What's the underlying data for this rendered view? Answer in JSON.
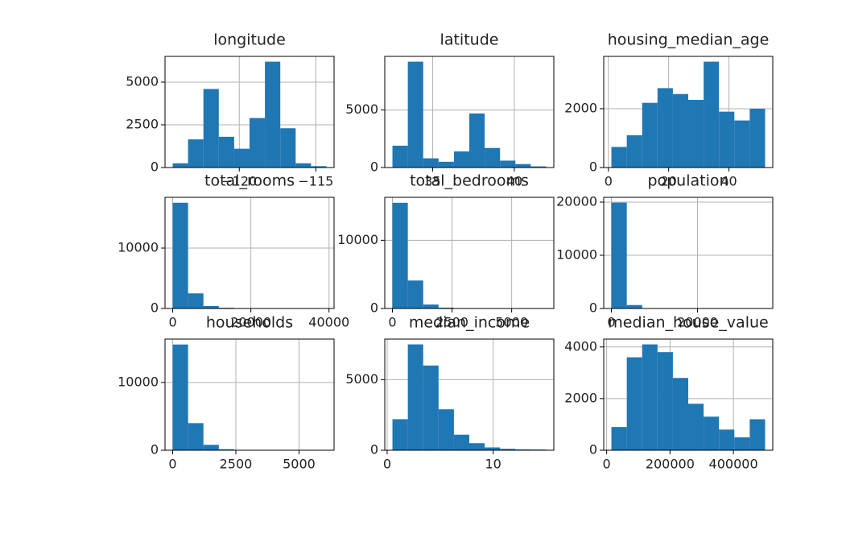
{
  "chart_data": [
    {
      "type": "histogram",
      "title": "longitude",
      "color": "#1f77b4",
      "grid": true,
      "bins": [
        -124.35,
        -123.346,
        -122.342,
        -121.338,
        -120.334,
        -119.33,
        -118.326,
        -117.322,
        -116.318,
        -115.314,
        -114.31
      ],
      "counts": [
        250,
        1650,
        4600,
        1800,
        1100,
        2900,
        6200,
        2300,
        250,
        80
      ],
      "xlim": [
        -124.85,
        -113.81
      ],
      "xticks": [
        {
          "value": -120,
          "label": "−120"
        },
        {
          "value": -115,
          "label": "−115"
        }
      ],
      "ylim": [
        0,
        6510
      ],
      "yticks": [
        0,
        2500,
        5000
      ]
    },
    {
      "type": "histogram",
      "title": "latitude",
      "color": "#1f77b4",
      "grid": true,
      "bins": [
        32.54,
        33.481,
        34.422,
        35.363,
        36.304,
        37.245,
        38.186,
        39.127,
        40.068,
        41.009,
        41.95
      ],
      "counts": [
        1900,
        9200,
        800,
        500,
        1400,
        4700,
        1700,
        600,
        300,
        100
      ],
      "xlim": [
        32.07,
        42.42
      ],
      "xticks": [
        35,
        40
      ],
      "ylim": [
        0,
        9660
      ],
      "yticks": [
        0,
        5000
      ]
    },
    {
      "type": "histogram",
      "title": "housing_median_age",
      "color": "#1f77b4",
      "grid": true,
      "bins": [
        1,
        6.1,
        11.2,
        16.3,
        21.4,
        26.5,
        31.6,
        36.7,
        41.8,
        46.9,
        52
      ],
      "counts": [
        700,
        1100,
        2200,
        2700,
        2500,
        2300,
        3600,
        1900,
        1600,
        2000
      ],
      "xlim": [
        -1.55,
        54.55
      ],
      "xticks": [
        0,
        20,
        40
      ],
      "ylim": [
        0,
        3780
      ],
      "yticks": [
        0,
        2000
      ]
    },
    {
      "type": "histogram",
      "title": "total_rooms",
      "color": "#1f77b4",
      "grid": true,
      "bins": [
        2,
        3933.8,
        7865.6,
        11797.4,
        15729.2,
        19661,
        23592.8,
        27524.6,
        31456.4,
        35388.2,
        39320
      ],
      "counts": [
        17500,
        2500,
        400,
        120,
        50,
        20,
        10,
        5,
        3,
        2
      ],
      "xlim": [
        -1964,
        41286
      ],
      "xticks": [
        0,
        20000,
        40000
      ],
      "ylim": [
        0,
        18400
      ],
      "yticks": [
        0,
        10000
      ]
    },
    {
      "type": "histogram",
      "title": "total_bedrooms",
      "color": "#1f77b4",
      "grid": true,
      "bins": [
        1,
        645.4,
        1289.8,
        1934.2,
        2578.6,
        3223,
        3867.4,
        4511.8,
        5156.2,
        5800.6,
        6445
      ],
      "counts": [
        15500,
        4100,
        580,
        120,
        40,
        15,
        5,
        3,
        2,
        1
      ],
      "xlim": [
        -321,
        6767
      ],
      "xticks": [
        0,
        2500,
        5000
      ],
      "ylim": [
        0,
        16300
      ],
      "yticks": [
        0,
        10000
      ]
    },
    {
      "type": "histogram",
      "title": "population",
      "color": "#1f77b4",
      "grid": true,
      "bins": [
        3,
        3570.9,
        7138.8,
        10706.7,
        14274.6,
        17842.5,
        21410.4,
        24978.3,
        28546.2,
        32114.1,
        35682
      ],
      "counts": [
        19900,
        650,
        50,
        10,
        5,
        2,
        1,
        0,
        0,
        1
      ],
      "xlim": [
        -1781,
        37466
      ],
      "xticks": [
        0,
        20000
      ],
      "ylim": [
        0,
        20900
      ],
      "yticks": [
        0,
        10000,
        20000
      ]
    },
    {
      "type": "histogram",
      "title": "households",
      "color": "#1f77b4",
      "grid": true,
      "bins": [
        1,
        609.1,
        1217.2,
        1825.3,
        2433.4,
        3041.5,
        3649.6,
        4257.7,
        4865.8,
        5473.9,
        6082
      ],
      "counts": [
        15600,
        4000,
        800,
        150,
        40,
        15,
        5,
        3,
        2,
        1
      ],
      "xlim": [
        -303,
        6386
      ],
      "xticks": [
        0,
        2500,
        5000
      ],
      "ylim": [
        0,
        16400
      ],
      "yticks": [
        0,
        10000
      ]
    },
    {
      "type": "histogram",
      "title": "median_income",
      "color": "#1f77b4",
      "grid": true,
      "bins": [
        0.5,
        1.95,
        3.4,
        4.85,
        6.3,
        7.75,
        9.2,
        10.65,
        12.1,
        13.55,
        15
      ],
      "counts": [
        2200,
        7500,
        6000,
        2900,
        1100,
        500,
        200,
        100,
        60,
        50
      ],
      "xlim": [
        -0.225,
        15.725
      ],
      "xticks": [
        0,
        10
      ],
      "ylim": [
        0,
        7875
      ],
      "yticks": [
        0,
        5000
      ]
    },
    {
      "type": "histogram",
      "title": "median_house_value",
      "color": "#1f77b4",
      "grid": true,
      "bins": [
        14999,
        63499,
        111999,
        160499,
        208999,
        257499,
        305999,
        354499,
        402999,
        451499,
        500001
      ],
      "counts": [
        900,
        3600,
        4100,
        3800,
        2800,
        1800,
        1300,
        800,
        500,
        1200
      ],
      "xlim": [
        -9251,
        524251
      ],
      "xticks": [
        0,
        200000,
        400000
      ],
      "ylim": [
        0,
        4305
      ],
      "yticks": [
        0,
        2000,
        4000
      ]
    }
  ]
}
